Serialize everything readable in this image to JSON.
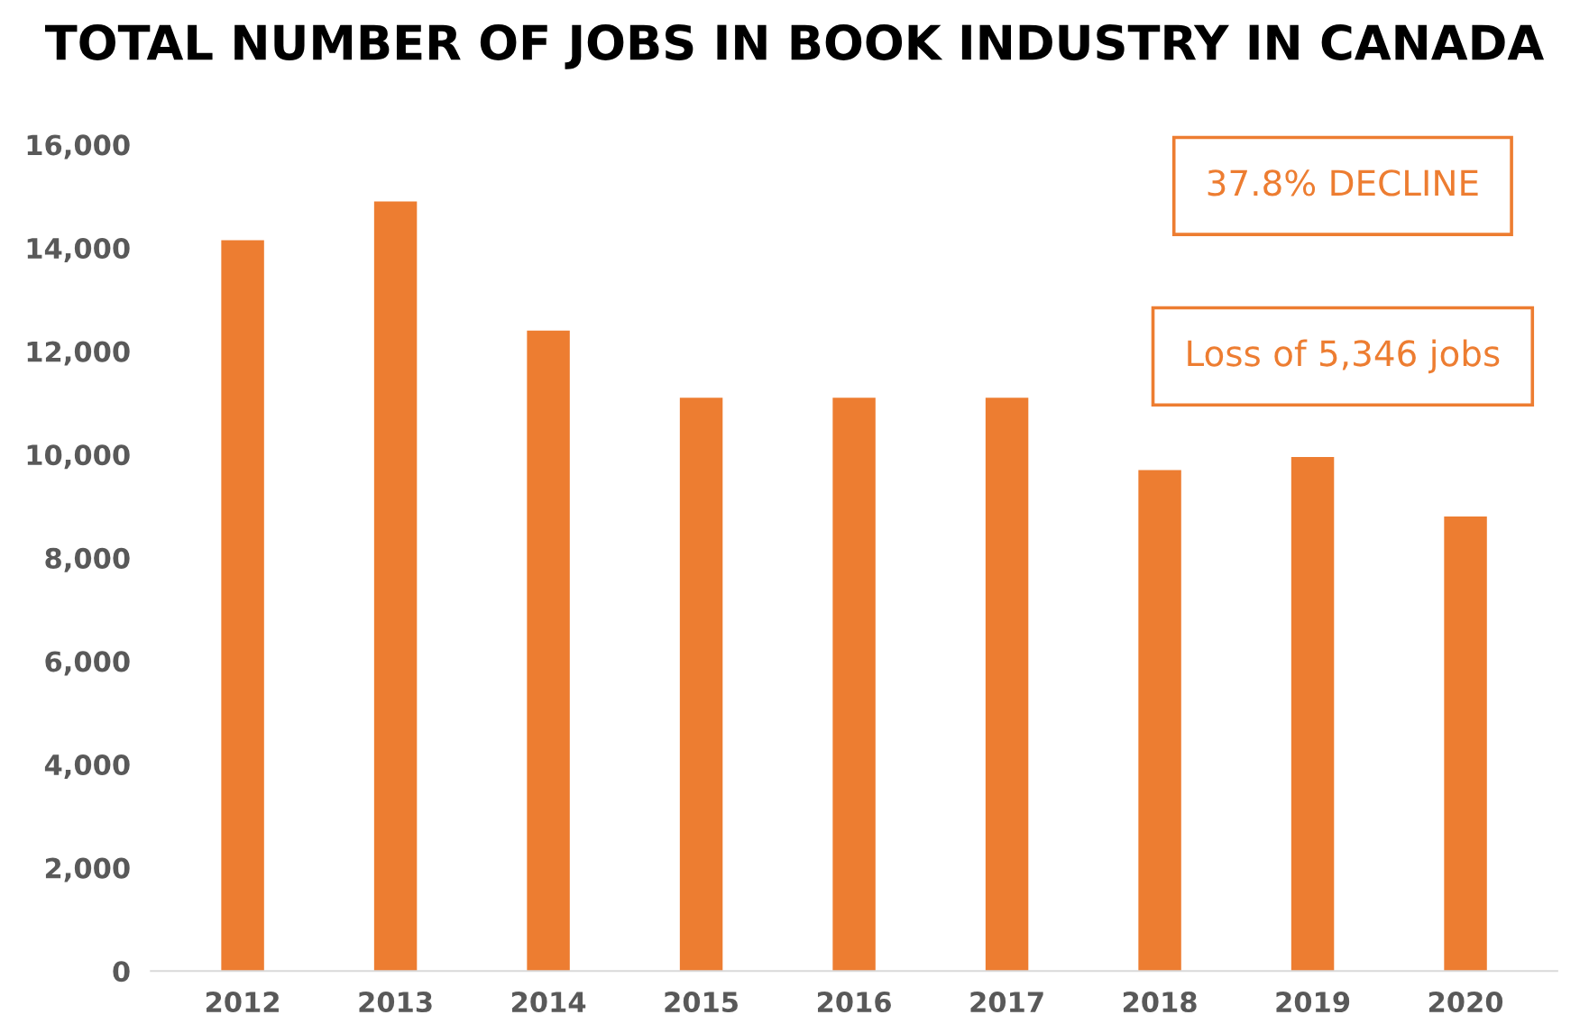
{
  "chart_data": {
    "type": "bar",
    "title": "TOTAL NUMBER OF JOBS IN BOOK INDUSTRY IN CANADA",
    "categories": [
      "2012",
      "2013",
      "2014",
      "2015",
      "2016",
      "2017",
      "2018",
      "2019",
      "2020"
    ],
    "values": [
      14150,
      14900,
      12400,
      11100,
      11100,
      11100,
      9700,
      9950,
      8800
    ],
    "color": "#ed7d31",
    "ylim": [
      0,
      16000
    ],
    "yticks": [
      {
        "value": 0,
        "label": "0"
      },
      {
        "value": 2000,
        "label": "2,000"
      },
      {
        "value": 4000,
        "label": "4,000"
      },
      {
        "value": 6000,
        "label": "6,000"
      },
      {
        "value": 8000,
        "label": "8,000"
      },
      {
        "value": 10000,
        "label": "10,000"
      },
      {
        "value": 12000,
        "label": "12,000"
      },
      {
        "value": 14000,
        "label": "14,000"
      },
      {
        "value": 16000,
        "label": "16,000"
      }
    ],
    "grid": false,
    "annotations": [
      "37.8% DECLINE",
      "Loss of 5,346 jobs"
    ]
  }
}
